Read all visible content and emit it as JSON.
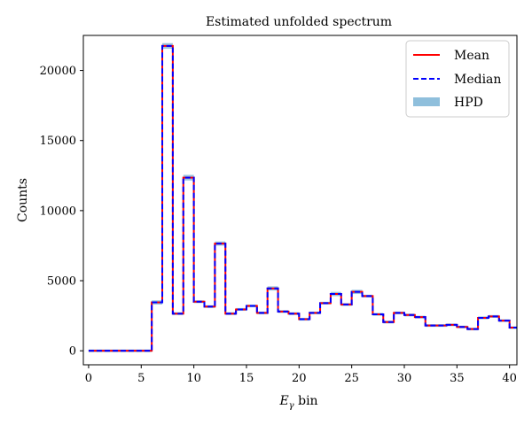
{
  "chart_data": {
    "type": "line",
    "title": "Estimated unfolded spectrum",
    "xlabel_main": "E",
    "xlabel_sub": "γ",
    "xlabel_tail": " bin",
    "ylabel": "Counts",
    "xlim": [
      -0.5,
      40.7
    ],
    "ylim": [
      -1000,
      22500
    ],
    "xticks": [
      0,
      5,
      10,
      15,
      20,
      25,
      30,
      35,
      40
    ],
    "yticks": [
      0,
      5000,
      10000,
      15000,
      20000
    ],
    "legend_position": "top-right",
    "colors": {
      "mean": "#ff0000",
      "median": "#0000ff",
      "hpd": "#8fbfdc"
    },
    "legend": [
      {
        "key": "mean",
        "label": "Mean",
        "style": "solid"
      },
      {
        "key": "median",
        "label": "Median",
        "style": "dashed"
      },
      {
        "key": "hpd",
        "label": "HPD",
        "style": "band"
      }
    ],
    "bin_edges": [
      0,
      1,
      2,
      3,
      4,
      5,
      6,
      7,
      8,
      9,
      10,
      11,
      12,
      13,
      14,
      15,
      16,
      17,
      18,
      19,
      20,
      21,
      22,
      23,
      24,
      25,
      26,
      27,
      28,
      29,
      30,
      31,
      32,
      33,
      34,
      35,
      36,
      37,
      38,
      39,
      40,
      41
    ],
    "mean": [
      0,
      0,
      0,
      0,
      0,
      0,
      3450,
      21750,
      2650,
      12350,
      3500,
      3150,
      7650,
      2650,
      2950,
      3200,
      2700,
      4450,
      2800,
      2650,
      2250,
      2700,
      3400,
      4050,
      3300,
      4200,
      3900,
      2600,
      2050,
      2700,
      2550,
      2400,
      1800,
      1800,
      1850,
      1700,
      1550,
      2350,
      2450,
      2150,
      1650
    ],
    "median": [
      0,
      0,
      0,
      0,
      0,
      0,
      3450,
      21750,
      2650,
      12350,
      3500,
      3150,
      7650,
      2650,
      2950,
      3200,
      2700,
      4450,
      2800,
      2650,
      2250,
      2700,
      3400,
      4050,
      3300,
      4200,
      3900,
      2600,
      2050,
      2700,
      2550,
      2400,
      1800,
      1800,
      1850,
      1700,
      1550,
      2350,
      2450,
      2150,
      1650
    ],
    "hpd_lower": [
      0,
      0,
      0,
      0,
      0,
      0,
      3300,
      21550,
      2550,
      12150,
      3400,
      3050,
      7500,
      2550,
      2850,
      3100,
      2600,
      4300,
      2700,
      2550,
      2150,
      2600,
      3300,
      3900,
      3200,
      4050,
      3800,
      2500,
      1950,
      2600,
      2450,
      2300,
      1720,
      1720,
      1770,
      1630,
      1480,
      2250,
      2350,
      2070,
      1570
    ],
    "hpd_upper": [
      0,
      0,
      0,
      0,
      0,
      0,
      3600,
      21950,
      2750,
      12550,
      3600,
      3250,
      7800,
      2750,
      3050,
      3300,
      2800,
      4600,
      2900,
      2750,
      2350,
      2800,
      3500,
      4200,
      3400,
      4350,
      4000,
      2700,
      2150,
      2800,
      2650,
      2500,
      1880,
      1880,
      1930,
      1770,
      1620,
      2450,
      2550,
      2230,
      1730
    ]
  }
}
